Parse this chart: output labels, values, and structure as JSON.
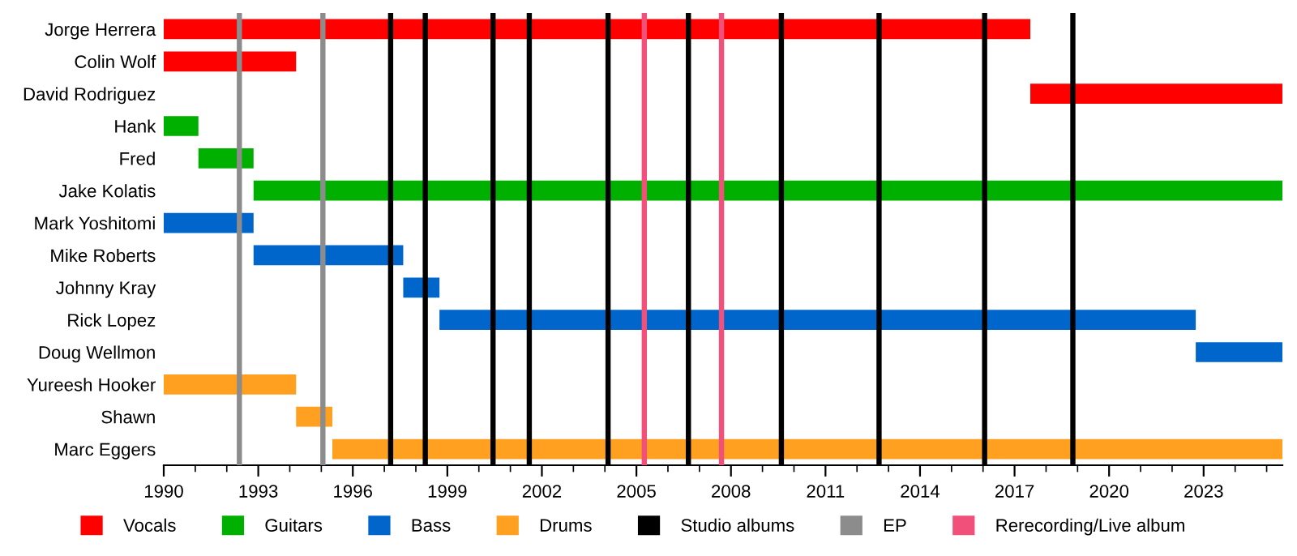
{
  "chart_data": {
    "type": "bar",
    "orientation": "horizontal",
    "categories": [
      "Jorge Herrera",
      "Colin Wolf",
      "David Rodriguez",
      "Hank",
      "Fred",
      "Jake Kolatis",
      "Mark Yoshitomi",
      "Mike Roberts",
      "Johnny Kray",
      "Rick Lopez",
      "Doug Wellmon",
      "Yureesh Hooker",
      "Shawn",
      "Marc Eggers"
    ],
    "series": [
      {
        "name": "Vocals",
        "color": "#ff0000",
        "base": [
          1990,
          1990,
          2017.5,
          null,
          null,
          null,
          null,
          null,
          null,
          null,
          null,
          null,
          null,
          null
        ],
        "values": [
          27.5,
          4.2,
          8,
          null,
          null,
          null,
          null,
          null,
          null,
          null,
          null,
          null,
          null,
          null
        ]
      },
      {
        "name": "Guitars",
        "color": "#00b000",
        "base": [
          null,
          null,
          null,
          1990,
          1991.1,
          1992.85,
          null,
          null,
          null,
          null,
          null,
          null,
          null,
          null
        ],
        "values": [
          null,
          null,
          null,
          1.1,
          1.75,
          32.65,
          null,
          null,
          null,
          null,
          null,
          null,
          null,
          null
        ]
      },
      {
        "name": "Bass",
        "color": "#0066cc",
        "base": [
          null,
          null,
          null,
          null,
          null,
          null,
          1990,
          1992.85,
          1997.6,
          1998.75,
          2022.75,
          null,
          null,
          null
        ],
        "values": [
          null,
          null,
          null,
          null,
          null,
          null,
          2.85,
          4.75,
          1.15,
          24,
          2.75,
          null,
          null,
          null
        ]
      },
      {
        "name": "Drums",
        "color": "#ffa020",
        "base": [
          null,
          null,
          null,
          null,
          null,
          null,
          null,
          null,
          null,
          null,
          null,
          1990,
          1994.2,
          1995.35
        ],
        "values": [
          null,
          null,
          null,
          null,
          null,
          null,
          null,
          null,
          null,
          null,
          null,
          4.2,
          1.15,
          30.15
        ]
      }
    ],
    "ref_lines": [
      {
        "axis": "x",
        "value": 1997.2,
        "label": "Studio albums",
        "color": "#000000"
      },
      {
        "axis": "x",
        "value": 1998.3,
        "color": "#000000"
      },
      {
        "axis": "x",
        "value": 2000.45,
        "color": "#000000"
      },
      {
        "axis": "x",
        "value": 2001.6,
        "color": "#000000"
      },
      {
        "axis": "x",
        "value": 2004.1,
        "color": "#000000"
      },
      {
        "axis": "x",
        "value": 2006.65,
        "color": "#000000"
      },
      {
        "axis": "x",
        "value": 2009.6,
        "color": "#000000"
      },
      {
        "axis": "x",
        "value": 2012.7,
        "color": "#000000"
      },
      {
        "axis": "x",
        "value": 2016.05,
        "color": "#000000"
      },
      {
        "axis": "x",
        "value": 2018.85,
        "color": "#000000"
      },
      {
        "axis": "x",
        "value": 1992.4,
        "label": "EP",
        "color": "#8c8c8c"
      },
      {
        "axis": "x",
        "value": 1995.05,
        "color": "#8c8c8c"
      },
      {
        "axis": "x",
        "value": 2005.25,
        "label": "Rerecording/Live album",
        "color": "#f0507a"
      },
      {
        "axis": "x",
        "value": 2007.7,
        "color": "#f0507a"
      }
    ],
    "xlim": [
      1990,
      2025.5
    ],
    "xticks": [
      1990,
      {
        "value": 1991,
        "label": null
      },
      {
        "value": 1992,
        "label": null
      },
      1993,
      {
        "value": 1994,
        "label": null
      },
      {
        "value": 1995,
        "label": null
      },
      1996,
      {
        "value": 1997,
        "label": null
      },
      {
        "value": 1998,
        "label": null
      },
      1999,
      {
        "value": 2000,
        "label": null
      },
      {
        "value": 2001,
        "label": null
      },
      2002,
      {
        "value": 2003,
        "label": null
      },
      {
        "value": 2004,
        "label": null
      },
      2005,
      {
        "value": 2006,
        "label": null
      },
      {
        "value": 2007,
        "label": null
      },
      2008,
      {
        "value": 2009,
        "label": null
      },
      {
        "value": 2010,
        "label": null
      },
      2011,
      {
        "value": 2012,
        "label": null
      },
      {
        "value": 2013,
        "label": null
      },
      2014,
      {
        "value": 2015,
        "label": null
      },
      {
        "value": 2016,
        "label": null
      },
      2017,
      {
        "value": 2018,
        "label": null
      },
      {
        "value": 2019,
        "label": null
      },
      2020,
      {
        "value": 2021,
        "label": null
      },
      {
        "value": 2022,
        "label": null
      },
      2023,
      {
        "value": 2024,
        "label": null
      },
      {
        "value": 2025,
        "label": null
      }
    ],
    "grid": false,
    "legend": "bottom"
  }
}
